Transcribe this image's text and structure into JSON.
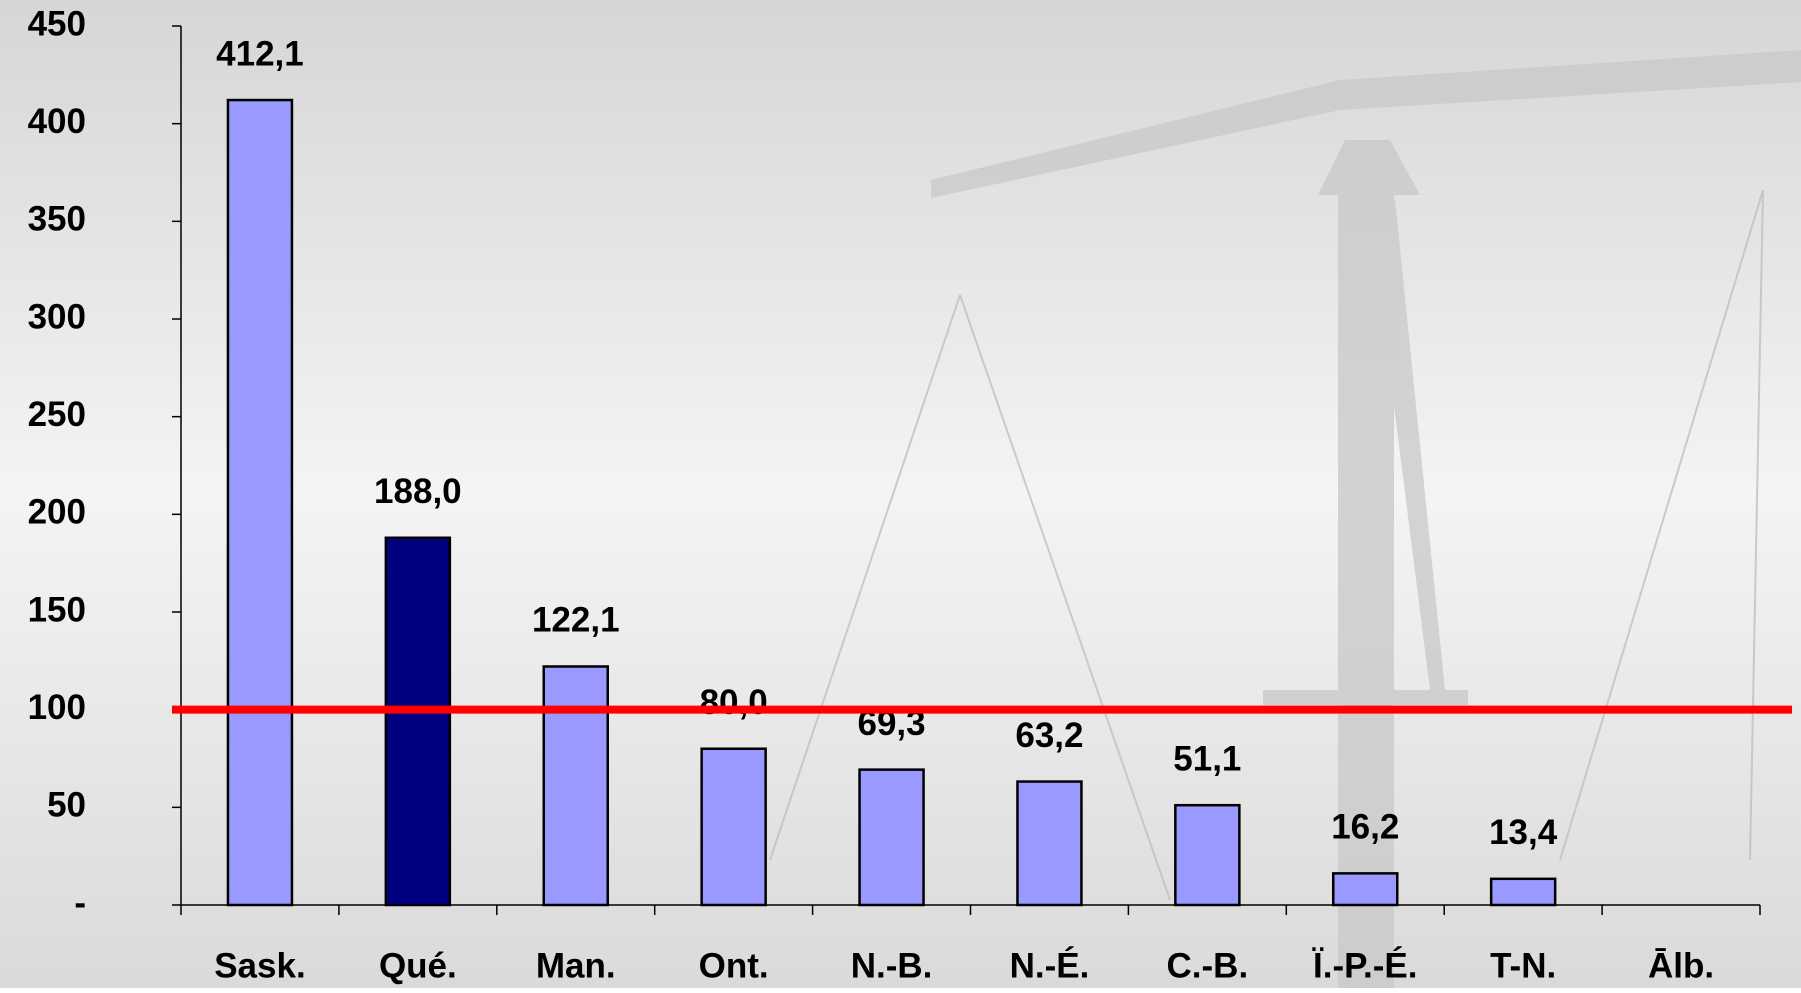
{
  "chart_data": {
    "type": "bar",
    "categories": [
      "Sask.",
      "Qué.",
      "Man.",
      "Ont.",
      "N.-B.",
      "N.-É.",
      "C.-B.",
      "Ï.-P.-É.",
      "T-N.",
      "Ālb."
    ],
    "values": [
      412.1,
      188.0,
      122.1,
      80.0,
      69.3,
      63.2,
      51.1,
      16.2,
      13.4,
      null
    ],
    "value_labels": [
      "412,1",
      "188,0",
      "122,1",
      "80,0",
      "69,3",
      "63,2",
      "51,1",
      "16,2",
      "13,4",
      null
    ],
    "colors": [
      "#9999ff",
      "#000080",
      "#9999ff",
      "#9999ff",
      "#9999ff",
      "#9999ff",
      "#9999ff",
      "#9999ff",
      "#9999ff",
      "#9999ff"
    ],
    "ylim": [
      0,
      450
    ],
    "yticks": [
      {
        "value": 0,
        "label": "-"
      },
      50,
      100,
      150,
      200,
      250,
      300,
      350,
      400,
      450
    ],
    "reference_line": {
      "value": 100,
      "color": "#ff0000"
    }
  }
}
